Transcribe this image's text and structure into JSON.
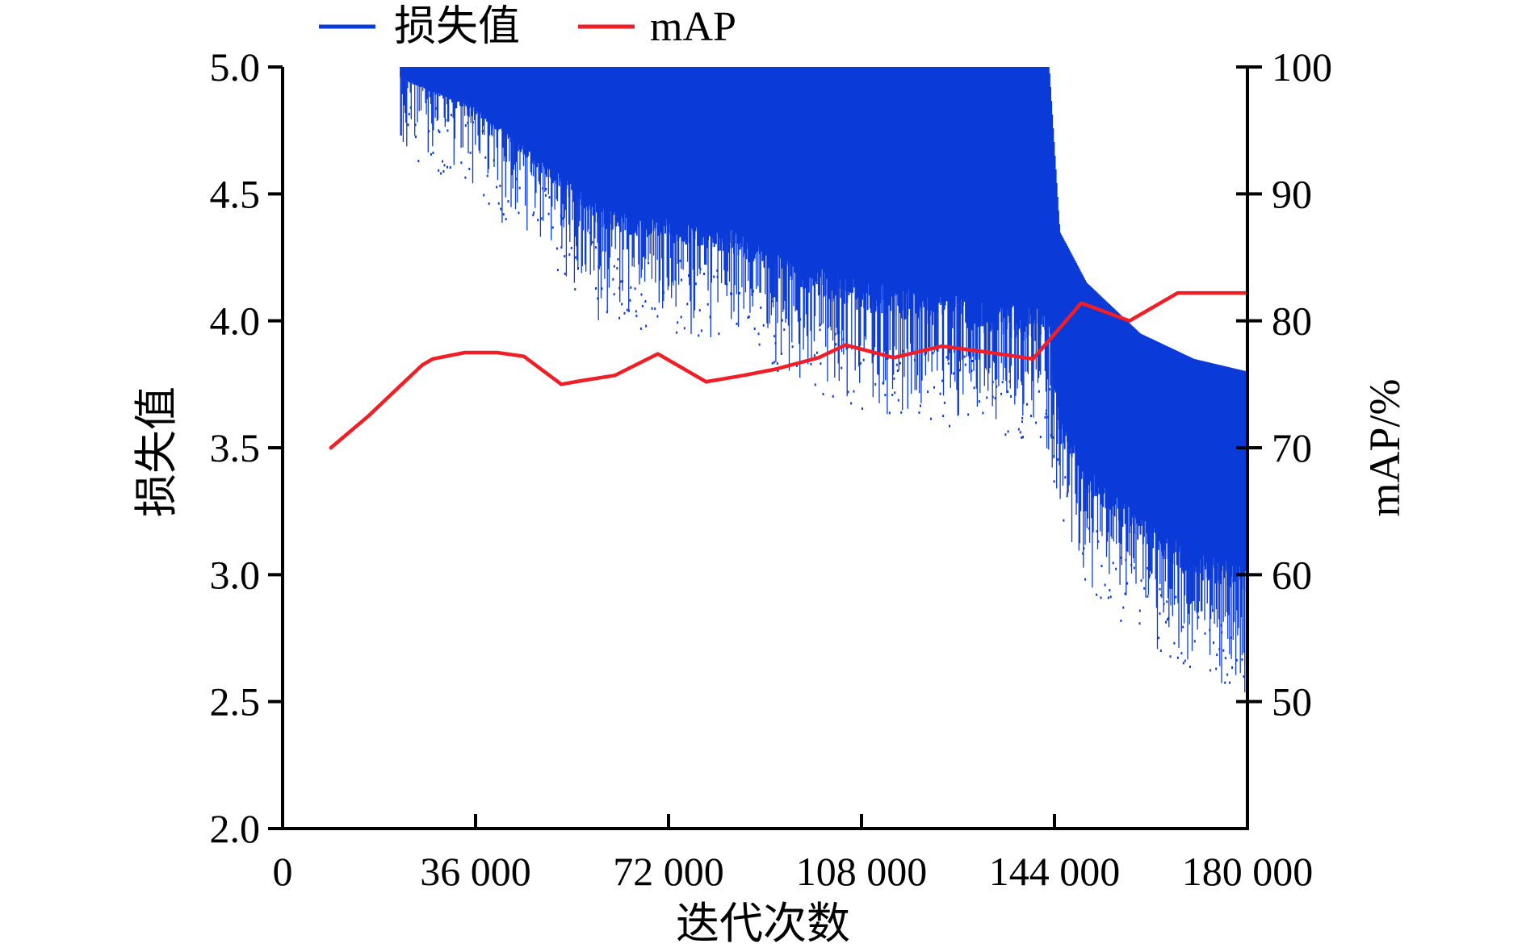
{
  "chart_data": {
    "type": "line",
    "title": "",
    "xlabel": "迭代次数",
    "ylabel_left": "损失值",
    "ylabel_right": "mAP/%",
    "xlim": [
      0,
      180000
    ],
    "ylim_left": [
      2.0,
      5.0
    ],
    "ylim_right": [
      40,
      100
    ],
    "x_ticks": [
      "0",
      "36 000",
      "72 000",
      "108 000",
      "144 000",
      "180 000"
    ],
    "y_left_ticks": [
      "2.0",
      "2.5",
      "3.0",
      "3.5",
      "4.0",
      "4.5",
      "5.0"
    ],
    "y_right_ticks": [
      "50",
      "60",
      "70",
      "80",
      "90",
      "100"
    ],
    "legend_position": "top",
    "grid": false,
    "colors": {
      "loss": "#0a3ad8",
      "map": "#f21e26"
    },
    "series": [
      {
        "name": "损失值",
        "axis": "left",
        "style": "dense-scatter",
        "band_x": [
          22000,
          36000,
          48000,
          60000,
          72000,
          84000,
          96000,
          108000,
          120000,
          132000,
          143000,
          145000,
          150000,
          160000,
          170000,
          180000
        ],
        "band_upper": [
          5.0,
          5.0,
          5.0,
          5.0,
          5.0,
          5.0,
          5.0,
          5.0,
          5.0,
          5.0,
          5.0,
          4.35,
          4.15,
          3.95,
          3.85,
          3.8
        ],
        "band_lower": [
          4.95,
          4.8,
          4.55,
          4.3,
          4.25,
          4.2,
          4.05,
          3.95,
          3.9,
          3.85,
          3.8,
          3.45,
          3.25,
          3.05,
          2.9,
          2.85
        ]
      },
      {
        "name": "mAP",
        "axis": "right",
        "x": [
          9000,
          16000,
          26000,
          28000,
          34000,
          40000,
          45000,
          52000,
          56000,
          62000,
          70000,
          79000,
          86000,
          92000,
          100000,
          105000,
          114000,
          123000,
          132000,
          140000,
          149000,
          158000,
          167000,
          171000,
          180000
        ],
        "y": [
          70,
          72.5,
          76.5,
          77,
          77.5,
          77.5,
          77.2,
          75,
          75.3,
          75.7,
          77.4,
          75.2,
          75.7,
          76.2,
          77.1,
          78.1,
          77.1,
          78,
          77.5,
          77,
          81.4,
          80,
          82.2,
          82.2,
          82.2
        ]
      }
    ]
  }
}
